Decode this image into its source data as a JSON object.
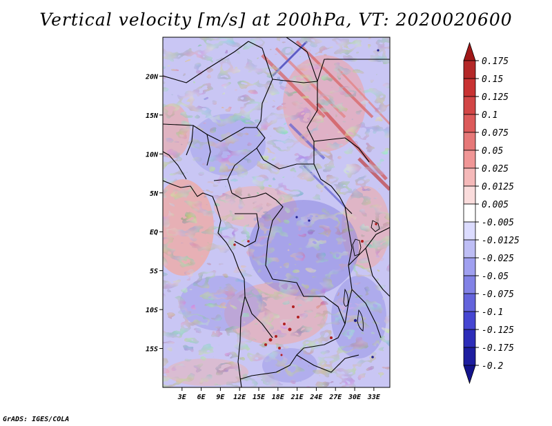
{
  "title": "Vertical velocity [m/s] at 200hPa, VT: 2020020600",
  "credit": "GrADS: IGES/COLA",
  "map": {
    "lon_range": [
      0,
      35.5
    ],
    "lat_range": [
      -20,
      25
    ],
    "lat_ticks": [
      {
        "value": 20,
        "label": "20N"
      },
      {
        "value": 15,
        "label": "15N"
      },
      {
        "value": 10,
        "label": "10N"
      },
      {
        "value": 5,
        "label": "5N"
      },
      {
        "value": 0,
        "label": "EQ"
      },
      {
        "value": -5,
        "label": "5S"
      },
      {
        "value": -10,
        "label": "10S"
      },
      {
        "value": -15,
        "label": "15S"
      }
    ],
    "lon_ticks": [
      {
        "value": 3,
        "label": "3E"
      },
      {
        "value": 6,
        "label": "6E"
      },
      {
        "value": 9,
        "label": "9E"
      },
      {
        "value": 12,
        "label": "12E"
      },
      {
        "value": 15,
        "label": "15E"
      },
      {
        "value": 18,
        "label": "18E"
      },
      {
        "value": 21,
        "label": "21E"
      },
      {
        "value": 24,
        "label": "24E"
      },
      {
        "value": 27,
        "label": "27E"
      },
      {
        "value": 30,
        "label": "30E"
      },
      {
        "value": 33,
        "label": "33E"
      }
    ]
  },
  "colorbar": {
    "labels": [
      "0.175",
      "0.15",
      "0.125",
      "0.1",
      "0.075",
      "0.05",
      "0.025",
      "0.0125",
      "0.005",
      "-0.005",
      "-0.0125",
      "-0.025",
      "-0.05",
      "-0.075",
      "-0.1",
      "-0.125",
      "-0.175",
      "-0.2"
    ],
    "colors": [
      "#a01818",
      "#b42828",
      "#c83232",
      "#d24646",
      "#dc5a5a",
      "#e67878",
      "#f09696",
      "#f5b9b9",
      "#fadcdc",
      "#ffffff",
      "#dcdcff",
      "#bebef5",
      "#a0a0f0",
      "#8282e6",
      "#6464dc",
      "#4646d2",
      "#2d2db9",
      "#1e1ea0",
      "#14148c"
    ]
  }
}
